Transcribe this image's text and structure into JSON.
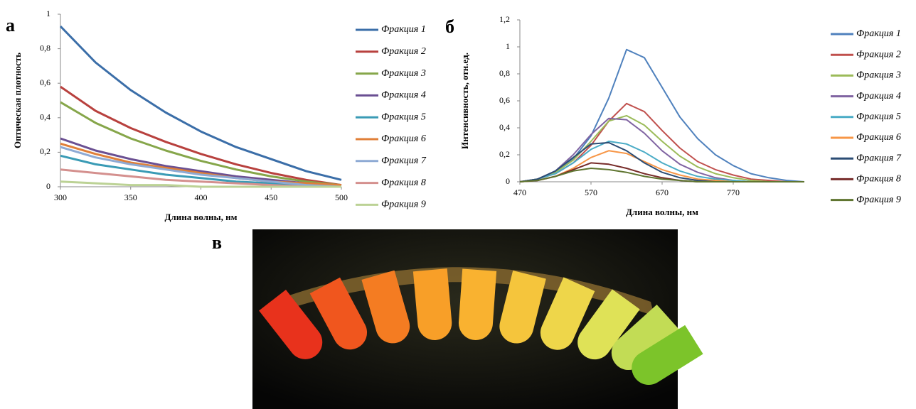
{
  "chart_data": [
    {
      "type": "line",
      "label": "а",
      "x_label": "Длина волны, нм",
      "y_label": "Оптическая плотность",
      "x": [
        300,
        325,
        350,
        375,
        400,
        425,
        450,
        475,
        500
      ],
      "xlim": [
        300,
        500
      ],
      "xticks": [
        300,
        350,
        400,
        450,
        500
      ],
      "ylim": [
        0,
        1
      ],
      "yticks": [
        0,
        {
          "value": 0.2,
          "label": "0,2"
        },
        {
          "value": 0.4,
          "label": "0,4"
        },
        {
          "value": 0.6,
          "label": "0,6"
        },
        {
          "value": 0.8,
          "label": "0,8"
        },
        1
      ],
      "series": [
        {
          "name": "Фракция 1",
          "color": "#3b6ea8",
          "values": [
            0.93,
            0.72,
            0.56,
            0.43,
            0.32,
            0.23,
            0.16,
            0.09,
            0.04
          ]
        },
        {
          "name": "Фракция 2",
          "color": "#b8413e",
          "values": [
            0.58,
            0.44,
            0.34,
            0.26,
            0.19,
            0.13,
            0.08,
            0.04,
            0.01
          ]
        },
        {
          "name": "Фракция 3",
          "color": "#86a64a",
          "values": [
            0.49,
            0.37,
            0.28,
            0.21,
            0.15,
            0.1,
            0.06,
            0.03,
            0.01
          ]
        },
        {
          "name": "Фракция 4",
          "color": "#6a4f92",
          "values": [
            0.28,
            0.21,
            0.16,
            0.12,
            0.09,
            0.06,
            0.04,
            0.02,
            0.01
          ]
        },
        {
          "name": "Фракция 5",
          "color": "#3a9bb5",
          "values": [
            0.18,
            0.13,
            0.1,
            0.07,
            0.05,
            0.03,
            0.02,
            0.01,
            0
          ]
        },
        {
          "name": "Фракция 6",
          "color": "#e07f38",
          "values": [
            0.25,
            0.19,
            0.14,
            0.11,
            0.08,
            0.05,
            0.03,
            0.02,
            0.01
          ]
        },
        {
          "name": "Фракция 7",
          "color": "#8eaad4",
          "values": [
            0.23,
            0.17,
            0.13,
            0.1,
            0.07,
            0.05,
            0.03,
            0.01,
            0
          ]
        },
        {
          "name": "Фракция 8",
          "color": "#d4908e",
          "values": [
            0.1,
            0.08,
            0.06,
            0.04,
            0.03,
            0.02,
            0.01,
            0,
            0
          ]
        },
        {
          "name": "Фракция 9",
          "color": "#bcd295",
          "values": [
            0.03,
            0.02,
            0.01,
            0.01,
            0,
            0,
            0,
            0,
            0
          ]
        }
      ]
    },
    {
      "type": "line",
      "label": "б",
      "x_label": "Длина волны, нм",
      "y_label": "Интенсивность, отн.ед.",
      "x": [
        470,
        495,
        520,
        545,
        570,
        595,
        620,
        645,
        670,
        695,
        720,
        745,
        770,
        795,
        820,
        845,
        870
      ],
      "xlim": [
        470,
        870
      ],
      "xticks": [
        470,
        570,
        670,
        770
      ],
      "ylim": [
        0,
        1.2
      ],
      "yticks": [
        0,
        {
          "value": 0.2,
          "label": "0,2"
        },
        {
          "value": 0.4,
          "label": "0,4"
        },
        {
          "value": 0.6,
          "label": "0,6"
        },
        {
          "value": 0.8,
          "label": "0,8"
        },
        1,
        {
          "value": 1.2,
          "label": "1,2"
        }
      ],
      "series": [
        {
          "name": "Фракция 1",
          "color": "#4f81bd",
          "values": [
            0,
            0.02,
            0.07,
            0.17,
            0.34,
            0.62,
            0.98,
            0.92,
            0.7,
            0.48,
            0.32,
            0.2,
            0.12,
            0.06,
            0.03,
            0.01,
            0
          ]
        },
        {
          "name": "Фракция 2",
          "color": "#c0504d",
          "values": [
            0,
            0.02,
            0.06,
            0.14,
            0.27,
            0.45,
            0.58,
            0.52,
            0.38,
            0.25,
            0.15,
            0.09,
            0.05,
            0.02,
            0.01,
            0,
            0
          ]
        },
        {
          "name": "Фракция 3",
          "color": "#9bbb59",
          "values": [
            0,
            0.02,
            0.07,
            0.16,
            0.3,
            0.45,
            0.49,
            0.42,
            0.3,
            0.19,
            0.11,
            0.06,
            0.03,
            0.01,
            0,
            0,
            0
          ]
        },
        {
          "name": "Фракция 4",
          "color": "#8064a2",
          "values": [
            0,
            0.02,
            0.08,
            0.2,
            0.35,
            0.47,
            0.46,
            0.36,
            0.23,
            0.13,
            0.07,
            0.03,
            0.01,
            0,
            0,
            0,
            0
          ]
        },
        {
          "name": "Фракция 5",
          "color": "#4bacc6",
          "values": [
            0,
            0.02,
            0.06,
            0.14,
            0.24,
            0.3,
            0.28,
            0.22,
            0.14,
            0.08,
            0.04,
            0.02,
            0.01,
            0,
            0,
            0,
            0
          ]
        },
        {
          "name": "Фракция 6",
          "color": "#f79646",
          "values": [
            0,
            0.01,
            0.04,
            0.1,
            0.18,
            0.23,
            0.21,
            0.15,
            0.09,
            0.05,
            0.02,
            0.01,
            0,
            0,
            0,
            0,
            0
          ]
        },
        {
          "name": "Фракция 7",
          "color": "#2c4d75",
          "values": [
            0,
            0.02,
            0.08,
            0.18,
            0.28,
            0.29,
            0.23,
            0.14,
            0.07,
            0.03,
            0.01,
            0,
            0,
            0,
            0,
            0,
            0
          ]
        },
        {
          "name": "Фракция 8",
          "color": "#772c2a",
          "values": [
            0,
            0.01,
            0.04,
            0.09,
            0.14,
            0.13,
            0.1,
            0.06,
            0.03,
            0.01,
            0,
            0,
            0,
            0,
            0,
            0,
            0
          ]
        },
        {
          "name": "Фракция 9",
          "color": "#5f7530",
          "values": [
            0,
            0.01,
            0.04,
            0.08,
            0.1,
            0.09,
            0.07,
            0.04,
            0.02,
            0.01,
            0,
            0,
            0,
            0,
            0,
            0,
            0
          ]
        }
      ]
    }
  ],
  "photo_label": "в"
}
